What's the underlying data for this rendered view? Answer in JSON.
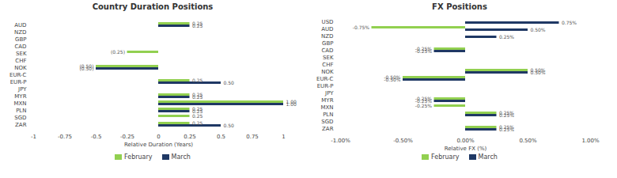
{
  "chart_data": [
    {
      "type": "bar",
      "orientation": "horizontal",
      "title": "Country Duration Positions",
      "xlabel": "Relative Duration (Years)",
      "categories": [
        "AUD",
        "NZD",
        "GBP",
        "CAD",
        "SEK",
        "CHF",
        "NOK",
        "EUR-C",
        "EUR-P",
        "JPY",
        "MYR",
        "MXN",
        "PLN",
        "SGD",
        "ZAR"
      ],
      "series": [
        {
          "name": "February",
          "color": "#92d050",
          "values": [
            0.25,
            0.0,
            0.0,
            0.0,
            -0.25,
            0.0,
            -0.5,
            0.0,
            0.25,
            0.0,
            0.25,
            1.0,
            0.25,
            0.25,
            0.25
          ],
          "value_labels": [
            "0.25",
            null,
            null,
            null,
            "(0.25)",
            null,
            "(0.50)",
            null,
            "0.25",
            null,
            "0.25",
            "1.00",
            "0.25",
            "0.25",
            "0.25"
          ]
        },
        {
          "name": "March",
          "color": "#1f3864",
          "values": [
            0.25,
            0.0,
            0.0,
            0.0,
            0.0,
            0.0,
            -0.5,
            0.0,
            0.5,
            0.0,
            0.25,
            1.0,
            0.25,
            0.0,
            0.5
          ],
          "value_labels": [
            "0.25",
            null,
            null,
            null,
            null,
            null,
            "(0.50)",
            null,
            "0.50",
            null,
            "0.25",
            "1.00",
            "0.25",
            null,
            "0.50"
          ]
        }
      ],
      "xlim": [
        -1,
        1
      ],
      "xticks": [
        -1,
        -0.75,
        -0.5,
        -0.25,
        0,
        0.25,
        0.5,
        0.75,
        1
      ],
      "grid": false,
      "legend": "bottom",
      "data_labels": true
    },
    {
      "type": "bar",
      "orientation": "horizontal",
      "title": "FX Positions",
      "xlabel": "Relative FX (%)",
      "categories": [
        "USD",
        "AUD",
        "NZD",
        "GBP",
        "CAD",
        "SEK",
        "CHF",
        "NOK",
        "EUR-C",
        "EUR-P",
        "JPY",
        "MYR",
        "MXN",
        "PLN",
        "SGD",
        "ZAR"
      ],
      "series": [
        {
          "name": "February",
          "color": "#92d050",
          "values": [
            0.0,
            -0.75,
            0.0,
            0.0,
            -0.25,
            0.0,
            0.0,
            0.5,
            -0.5,
            0.0,
            0.0,
            -0.25,
            -0.25,
            0.25,
            0.0,
            0.25
          ],
          "value_labels": [
            null,
            "-0.75%",
            null,
            null,
            "-0.25%",
            null,
            null,
            "0.50%",
            "-0.50%",
            null,
            null,
            "-0.25%",
            "-0.25%",
            "0.25%",
            null,
            "0.25%"
          ]
        },
        {
          "name": "March",
          "color": "#1f3864",
          "values": [
            0.75,
            0.5,
            0.25,
            0.0,
            -0.25,
            0.0,
            0.0,
            0.5,
            -0.5,
            0.0,
            0.0,
            -0.25,
            0.0,
            0.25,
            0.0,
            0.25
          ],
          "value_labels": [
            "0.75%",
            "0.50%",
            "0.25%",
            null,
            "-0.25%",
            null,
            null,
            "0.50%",
            "-0.50%",
            null,
            null,
            "-0.25%",
            null,
            "0.25%",
            null,
            "0.25%"
          ]
        }
      ],
      "xlim": [
        -1.0,
        1.0
      ],
      "xticks": [
        {
          "value": -1.0,
          "label": "-1.00%"
        },
        {
          "value": -0.5,
          "label": "-0.50%"
        },
        {
          "value": 0.0,
          "label": "0.00%"
        },
        {
          "value": 0.5,
          "label": "0.50%"
        },
        {
          "value": 1.0,
          "label": "1.00%"
        }
      ],
      "grid": false,
      "legend": "bottom",
      "data_labels": true
    }
  ]
}
